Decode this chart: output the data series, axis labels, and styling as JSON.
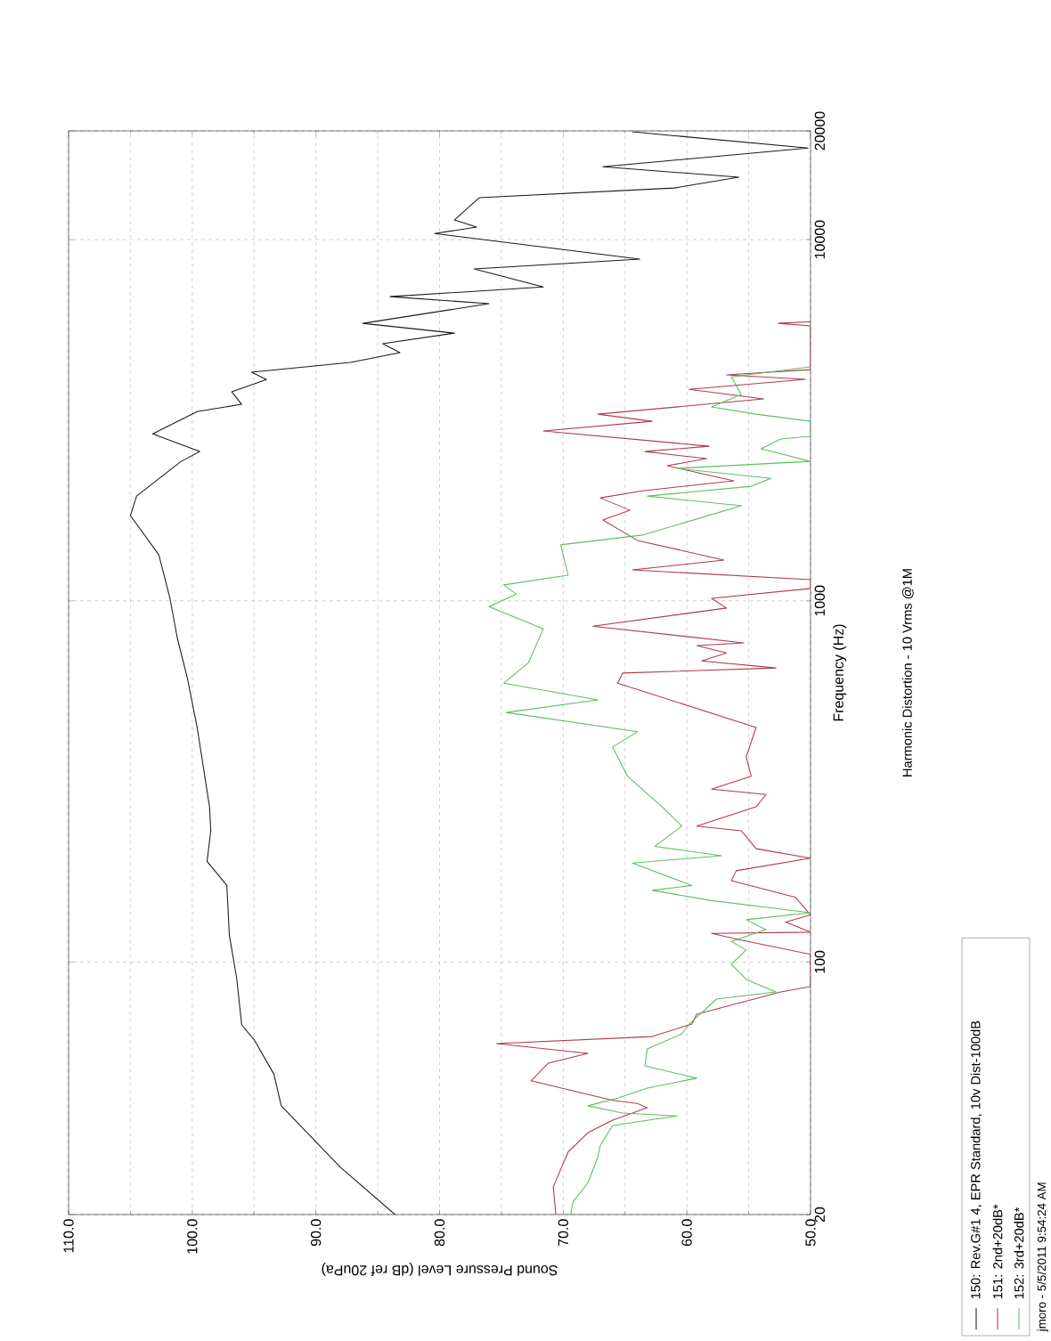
{
  "chart_data": {
    "type": "line",
    "xlabel": "Sound Pressure Level (dB ref 20uPa)",
    "ylabel": "Frequency (Hz)",
    "annotations": [
      "Harmonic Distortion - 10 Vrms @1M",
      "jmoro - 5/5/2011 9:54:24 AM"
    ],
    "log": "y",
    "grid": true,
    "legend": "right",
    "ylim": [
      20,
      20000
    ],
    "yticks": [
      20,
      100,
      1000,
      10000,
      20000
    ],
    "xlim": [
      110,
      50
    ],
    "xticks": [
      {
        "value": 110,
        "label": "110.0"
      },
      {
        "value": 100,
        "label": "100.0"
      },
      {
        "value": 90,
        "label": "90.0"
      },
      {
        "value": 80,
        "label": "80.0"
      },
      {
        "value": 70,
        "label": "70.0"
      },
      {
        "value": 60,
        "label": "60.0"
      },
      {
        "value": 50,
        "label": "50.0"
      }
    ],
    "series": [
      {
        "name": "150: Rev.G#1 4, EPR Standard, 10v Dist-100dB",
        "color": "#1a1a1a",
        "values": [
          20,
          27,
          40,
          49,
          61,
          67,
          90,
          119,
          163,
          190,
          231,
          269,
          446,
          613,
          787,
          1016,
          1341,
          1722,
          1950,
          2433,
          2590,
          2900,
          3343,
          3500,
          3790,
          4100,
          4295,
          4570,
          4865,
          5150,
          5510,
          5865,
          6650,
          6955,
          7400,
          8300,
          8830,
          10400,
          10830,
          11330,
          13060,
          13900,
          14890,
          15920,
          17940,
          19420,
          19880
        ],
        "x": [
          83.6,
          88.0,
          92.8,
          93.4,
          95.0,
          96.0,
          96.4,
          97.0,
          97.2,
          98.8,
          98.5,
          98.6,
          99.6,
          100.4,
          101.2,
          101.8,
          102.7,
          105.0,
          104.5,
          100.9,
          99.4,
          103.2,
          99.6,
          96.0,
          96.8,
          94.0,
          95.2,
          87.2,
          83.2,
          84.6,
          78.8,
          86.2,
          76.0,
          84.0,
          71.6,
          77.2,
          63.8,
          80.4,
          77.0,
          78.8,
          76.8,
          61.0,
          55.8,
          66.8,
          50.2,
          61.2,
          64.4
        ]
      },
      {
        "name": "151: 2nd+20dB*",
        "color": "#b03a48",
        "values": [
          20,
          23.9,
          29.8,
          33.7,
          36.5,
          39.5,
          40.6,
          41.4,
          46.9,
          52.5,
          55.9,
          59.5,
          62.2,
          67.4,
          71.7,
          82.7,
          85.5,
          105,
          115,
          120,
          121,
          129,
          135,
          151,
          168,
          179,
          194,
          206,
          231,
          238,
          269,
          291,
          301,
          327,
          370,
          446,
          592,
          631,
          652,
          682,
          718,
          752,
          765,
          851,
          955,
          1016,
          1082,
          1144,
          1218,
          1297,
          1470,
          1674,
          1781,
          1928,
          2017,
          2148,
          2366,
          2476,
          2590,
          2680,
          2953,
          3141,
          3288,
          3622,
          3853,
          4103,
          4221,
          4366,
          5770,
          5865,
          5930
        ],
        "x": [
          70.6,
          70.8,
          69.6,
          68.0,
          66.0,
          63.2,
          64.0,
          66.0,
          72.6,
          71.2,
          68.0,
          75.4,
          62.8,
          59.6,
          59.2,
          52.4,
          50.0,
          50.0,
          55.6,
          58.0,
          50.0,
          52.0,
          50.0,
          51.2,
          56.4,
          56.0,
          50.0,
          54.4,
          55.6,
          59.2,
          54.4,
          53.6,
          58.0,
          54.8,
          55.2,
          54.4,
          65.6,
          65.2,
          52.8,
          58.8,
          56.8,
          59.2,
          55.4,
          67.6,
          56.8,
          58.0,
          50.0,
          50.0,
          64.4,
          57.0,
          64.0,
          66.8,
          64.6,
          67.0,
          63.6,
          56.2,
          61.6,
          58.4,
          63.4,
          58.2,
          71.6,
          62.8,
          67.2,
          53.8,
          59.8,
          50.4,
          56.8,
          50.0,
          50.0,
          52.6,
          50.0
        ]
      },
      {
        "name": "152: 3rd+20dB*",
        "color": "#5cbf5c",
        "values": [
          20,
          21.7,
          24.5,
          28.8,
          31.1,
          35.3,
          37.5,
          38.2,
          40.0,
          42.0,
          44.8,
          47.7,
          51.6,
          57.5,
          63.3,
          67.4,
          79.0,
          82.7,
          89.5,
          98.6,
          108,
          114,
          123,
          131,
          137,
          148,
          158,
          163,
          188,
          197,
          209,
          238,
          269,
          327,
          394,
          434,
          491,
          532,
          592,
          675,
          837,
          964,
          1044,
          1107,
          1178,
          1429,
          1521,
          1833,
          1950,
          2076,
          2184,
          2327,
          2433,
          2637,
          2806,
          2853,
          3141,
          3288,
          3443,
          3725,
          4170,
          4445
        ],
        "x": [
          69.4,
          69.2,
          68.0,
          67.2,
          67.0,
          66.0,
          60.8,
          65.2,
          68.0,
          65.6,
          63.2,
          59.2,
          63.4,
          63.2,
          60.4,
          59.8,
          57.6,
          52.8,
          55.2,
          56.4,
          55.2,
          56.4,
          53.6,
          55.2,
          50.0,
          58.0,
          62.8,
          59.6,
          64.4,
          57.2,
          62.6,
          60.4,
          62.0,
          64.8,
          66.0,
          64.0,
          74.6,
          67.2,
          74.8,
          72.8,
          71.6,
          76.0,
          73.8,
          74.8,
          69.6,
          70.2,
          63.6,
          55.6,
          63.2,
          54.8,
          53.2,
          60.8,
          50.0,
          54.0,
          52.4,
          50.0,
          50.0,
          54.4,
          58.0,
          55.6,
          56.4,
          50.0
        ]
      }
    ]
  }
}
